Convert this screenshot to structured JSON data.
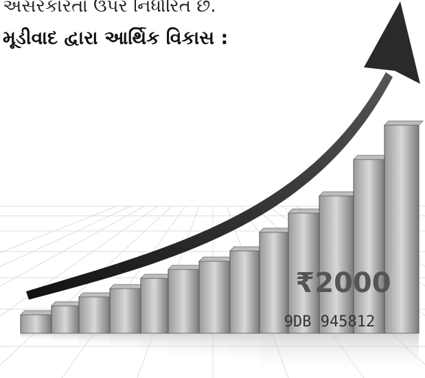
{
  "text": {
    "line1": "અસરકારતા ઉપર નિર્ધારિત છે.",
    "heading": "મૂડીવાદ દ્વારા આર્થિક વિકાસ :"
  },
  "image": {
    "note_value": "₹2000",
    "serial": "9DB 945812"
  }
}
